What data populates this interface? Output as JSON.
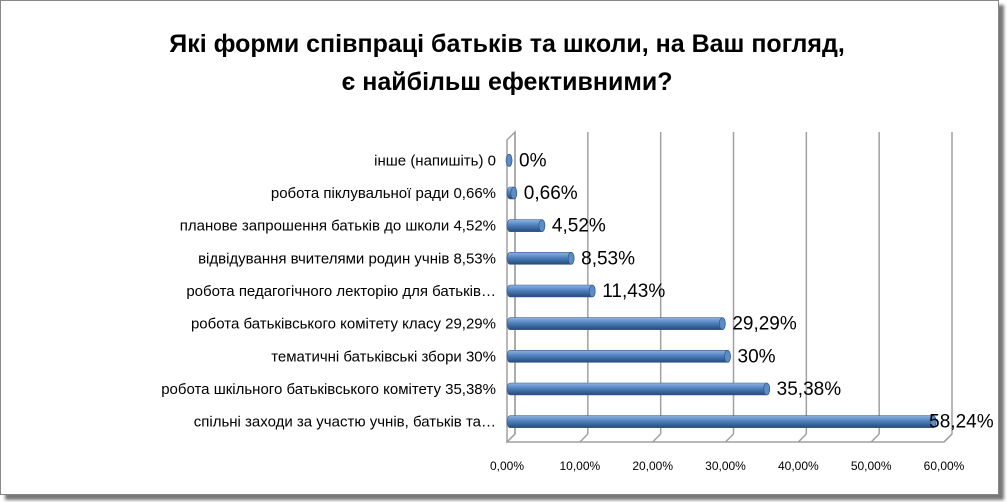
{
  "chart_data": {
    "type": "bar",
    "orientation": "horizontal",
    "style": "3d-cylinder",
    "title": "Які форми співпраці батьків та школи, на Ваш погляд, є найбільш ефективними?",
    "title_lines": [
      "Які форми співпраці батьків та школи, на Ваш погляд,",
      "є найбільш ефективними?"
    ],
    "categories": [
      "інше (напишіть) 0",
      "робота піклувальної ради 0,66%",
      "планове запрошення батьків до школи 4,52%",
      "відвідування вчителями родин учнів 8,53%",
      "робота педагогічного лекторію для батьків…",
      "робота батьківського комітету класу 29,29%",
      "тематичні батьківські збори 30%",
      "робота шкільного батьківського комітету 35,38%",
      "спільні заходи за участю учнів, батьків та…"
    ],
    "values": [
      0,
      0.66,
      4.52,
      8.53,
      11.43,
      29.29,
      30,
      35.38,
      58.24
    ],
    "data_labels": [
      "0%",
      "0,66%",
      "4,52%",
      "8,53%",
      "11,43%",
      "29,29%",
      "30%",
      "35,38%",
      "58,24%"
    ],
    "x_ticks": [
      "0,00%",
      "10,00%",
      "20,00%",
      "30,00%",
      "40,00%",
      "50,00%",
      "60,00%"
    ],
    "xlim": [
      0,
      60
    ],
    "unit": "%",
    "grid": true,
    "legend": "none",
    "colors": {
      "bar": "#4f81bd",
      "bar_light": "#8db3e2",
      "bar_dark": "#254a7a",
      "grid": "#a0a0a0"
    }
  }
}
